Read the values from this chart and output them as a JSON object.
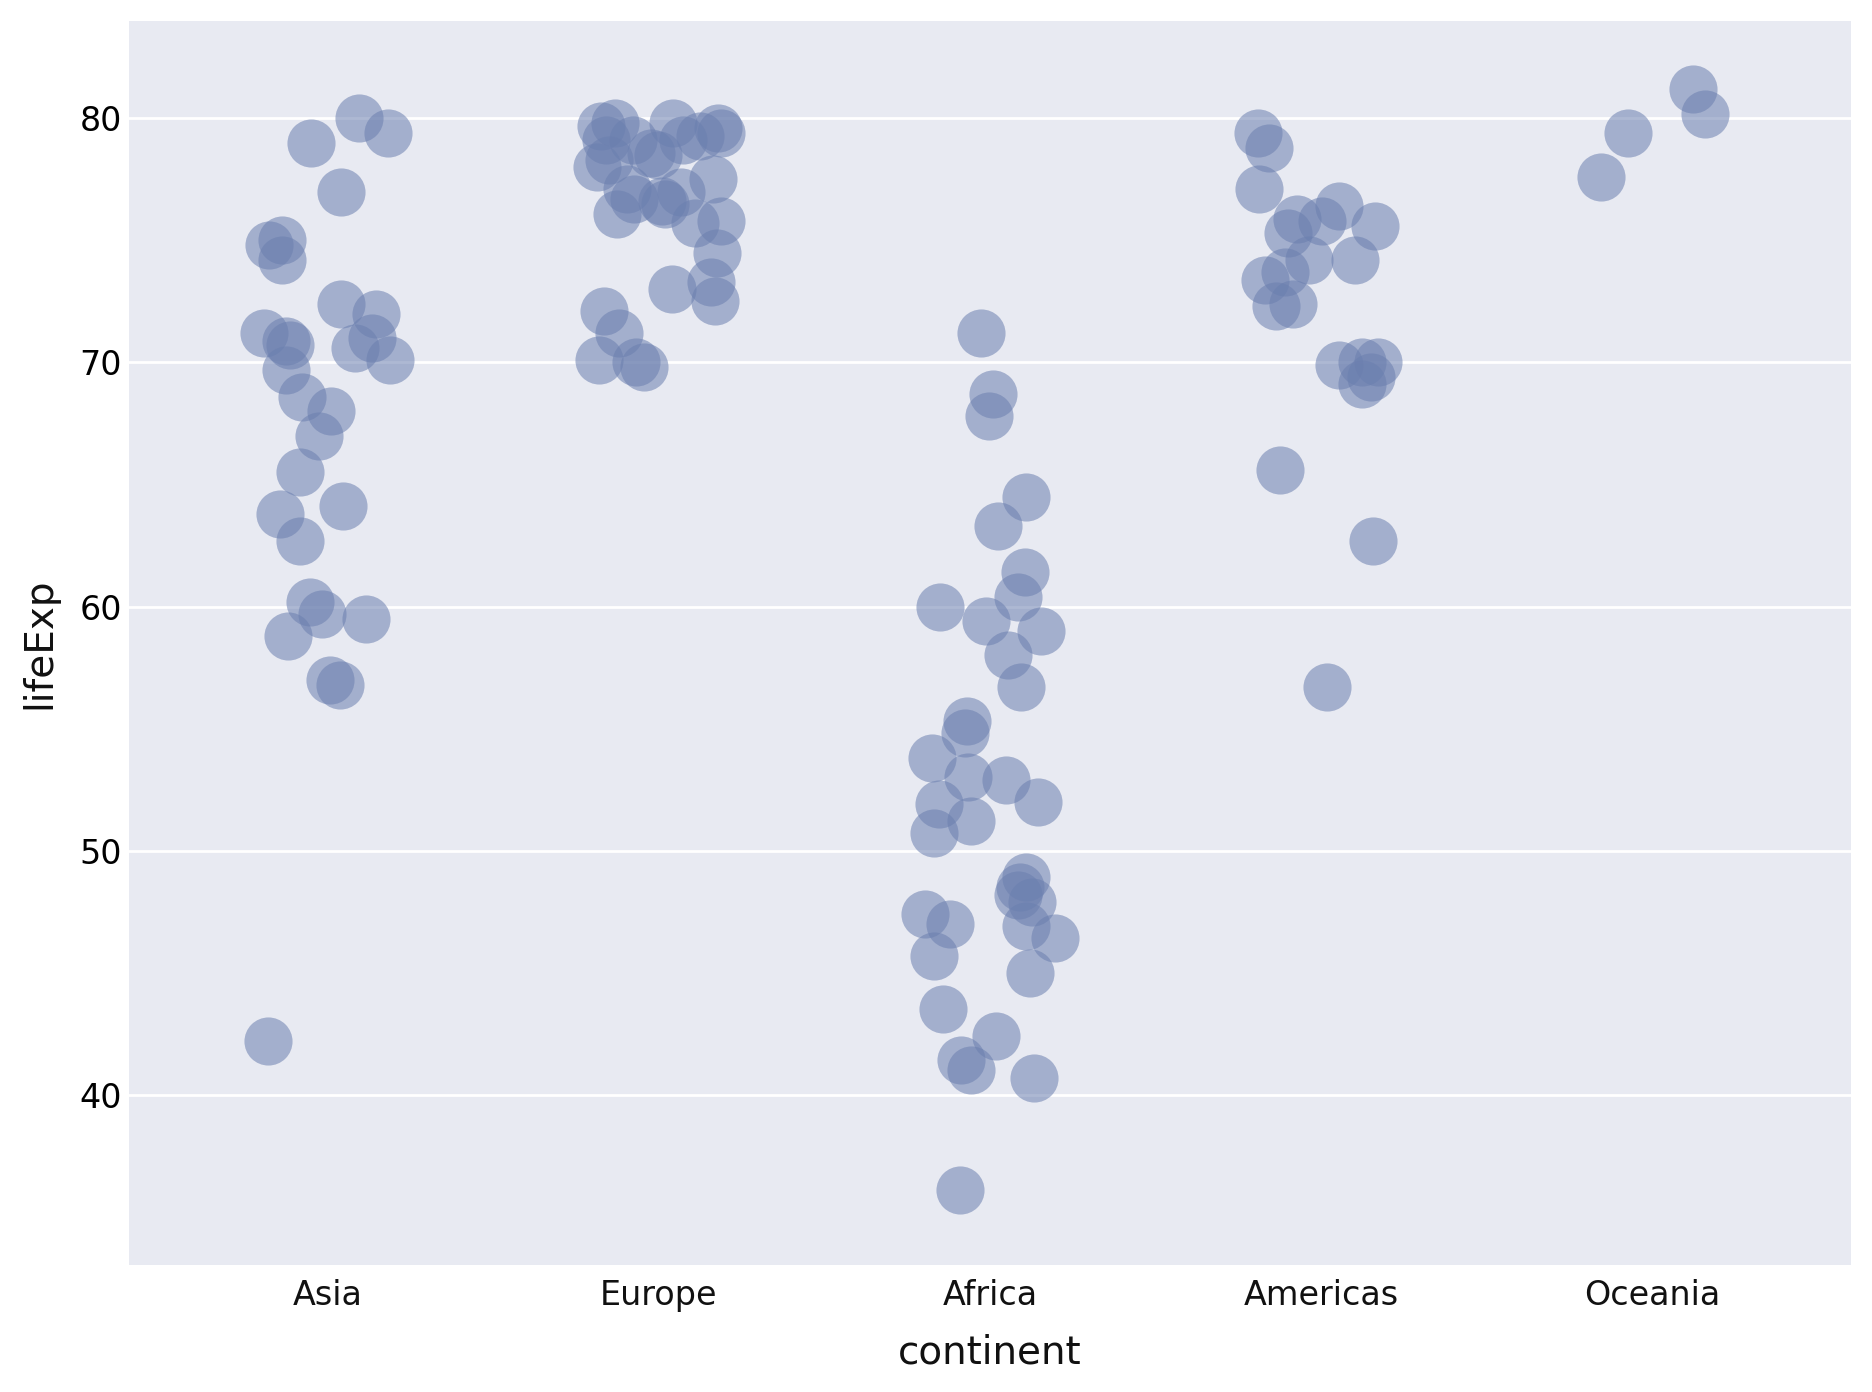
{
  "title": "",
  "xlabel": "continent",
  "ylabel": "lifeExp",
  "plot_bg_color": "#e8eaf2",
  "fig_bg_color": "#ffffff",
  "dot_color": "#6b7faf",
  "dot_alpha": 0.55,
  "dot_size": 1200,
  "continents": [
    "Asia",
    "Europe",
    "Africa",
    "Americas",
    "Oceania"
  ],
  "x_positions": [
    1,
    2,
    3,
    4,
    5
  ],
  "jitter_seed": 42,
  "data": {
    "Asia": [
      79.0,
      79.4,
      80.0,
      77.0,
      75.0,
      74.2,
      74.8,
      72.0,
      72.4,
      70.6,
      71.2,
      70.1,
      71.0,
      70.7,
      70.9,
      69.7,
      68.6,
      68.0,
      67.0,
      65.5,
      64.1,
      63.8,
      62.7,
      60.2,
      59.7,
      59.5,
      58.8,
      57.0,
      56.8,
      42.2
    ],
    "Europe": [
      79.8,
      79.8,
      79.7,
      79.6,
      79.4,
      79.3,
      79.1,
      79.1,
      79.1,
      78.6,
      78.3,
      78.5,
      78.0,
      77.5,
      77.1,
      77.0,
      76.7,
      76.6,
      76.5,
      76.1,
      75.8,
      75.7,
      74.5,
      73.3,
      73.0,
      72.5,
      72.1,
      71.2,
      70.1,
      70.0,
      69.8
    ],
    "Africa": [
      36.1,
      40.7,
      41.0,
      41.4,
      42.4,
      43.5,
      45.0,
      45.7,
      46.4,
      46.9,
      47.0,
      47.4,
      47.9,
      48.2,
      48.5,
      48.9,
      50.7,
      51.2,
      51.9,
      52.0,
      52.9,
      53.0,
      53.8,
      54.8,
      55.3,
      56.7,
      58.0,
      59.0,
      59.4,
      60.0,
      60.4,
      61.4,
      63.3,
      64.5,
      67.8,
      68.7,
      71.2
    ],
    "Americas": [
      79.4,
      78.8,
      77.1,
      76.4,
      75.9,
      75.8,
      75.6,
      75.3,
      74.2,
      74.2,
      73.7,
      73.4,
      72.4,
      72.3,
      70.0,
      70.0,
      69.9,
      69.4,
      69.1,
      65.6,
      62.7,
      56.7
    ],
    "Oceania": [
      81.2,
      80.2,
      79.4,
      77.6
    ]
  }
}
